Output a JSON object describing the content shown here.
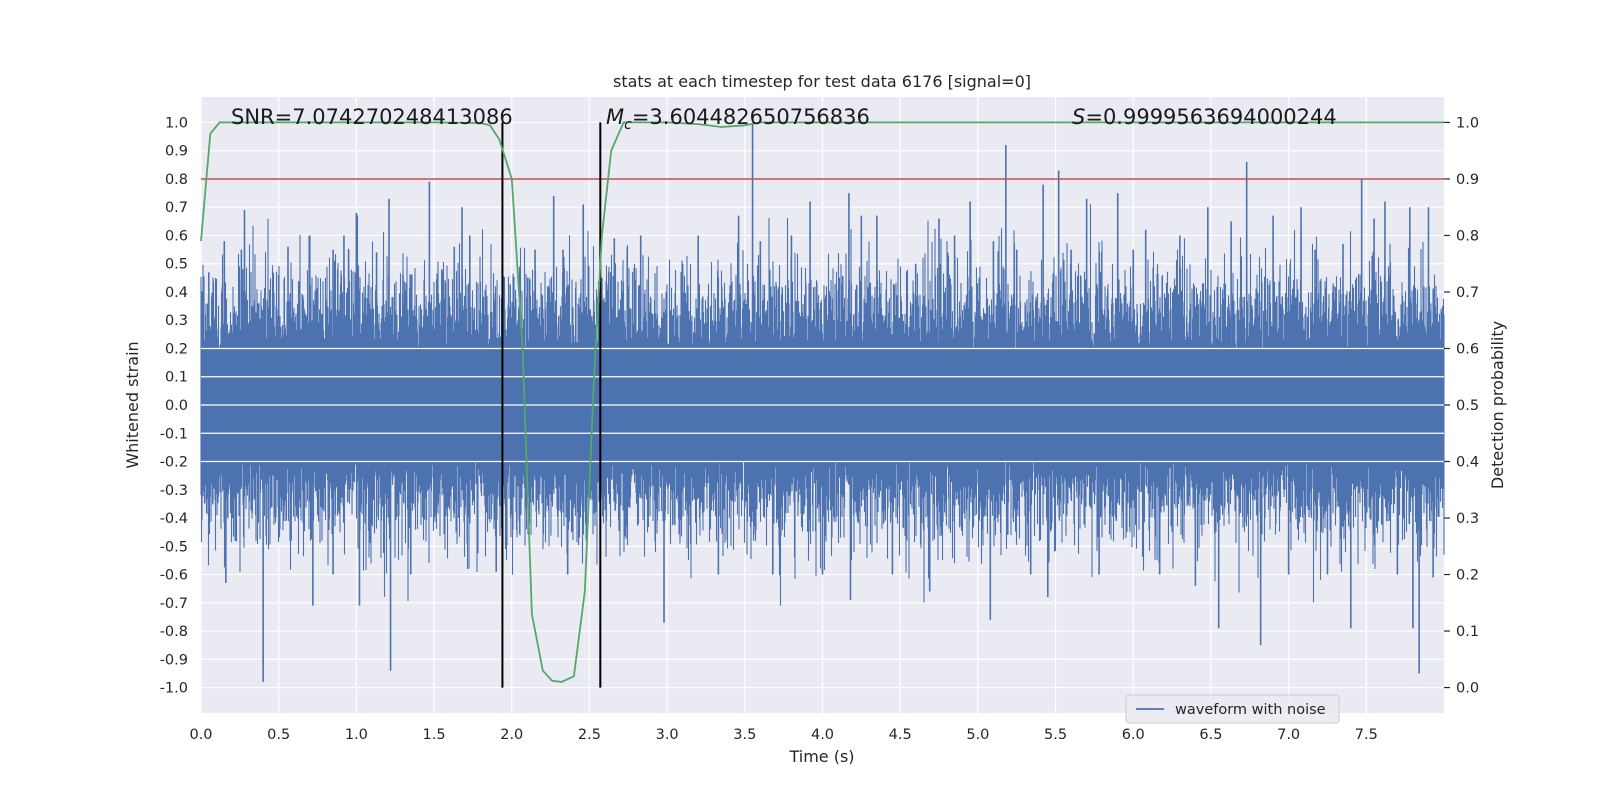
{
  "chart_data": {
    "type": "line",
    "title": "stats at each timestep for test data 6176 [signal=0]",
    "xlabel": "Time (s)",
    "ylabel": "Whitened strain",
    "ylabel_right": "Detection probability",
    "xlim": [
      0.0,
      8.0
    ],
    "ylim": [
      -1.09,
      1.09
    ],
    "ylim_right": [
      -0.045,
      1.045
    ],
    "x_ticks": [
      "0.0",
      "0.5",
      "1.0",
      "1.5",
      "2.0",
      "2.5",
      "3.0",
      "3.5",
      "4.0",
      "4.5",
      "5.0",
      "5.5",
      "6.0",
      "6.5",
      "7.0",
      "7.5"
    ],
    "y_ticks": [
      "1.0",
      "0.9",
      "0.8",
      "0.7",
      "0.6",
      "0.5",
      "0.4",
      "0.3",
      "0.2",
      "0.1",
      "0.0",
      "-0.1",
      "-0.2",
      "-0.3",
      "-0.4",
      "-0.5",
      "-0.6",
      "-0.7",
      "-0.8",
      "-0.9",
      "-1.0"
    ],
    "y_ticks_right": [
      "1.0",
      "0.9",
      "0.8",
      "0.7",
      "0.6",
      "0.5",
      "0.4",
      "0.3",
      "0.2",
      "0.1",
      "0.0"
    ],
    "grid": true,
    "legend": {
      "position": "bottom-right",
      "entries": [
        "waveform with noise"
      ]
    },
    "annotations": {
      "snr": "SNR=7.074270248413086",
      "mc_symbol": "M",
      "mc_sub": "c",
      "mc_value": "=3.604482650756836",
      "s_symbol": "S",
      "s_value": "=0.9999563694000244"
    },
    "threshold_right": 0.9,
    "vertical_lines": [
      1.94,
      2.57
    ],
    "waveform": {
      "name": "waveform with noise",
      "duration": 8.0,
      "core_amplitude": 0.2,
      "typical_amplitude": 0.45,
      "spikes": [
        {
          "x": 0.05,
          "y": 0.47
        },
        {
          "x": 0.15,
          "y": 0.58
        },
        {
          "x": 0.16,
          "y": -0.63
        },
        {
          "x": 0.26,
          "y": 0.55
        },
        {
          "x": 0.28,
          "y": 0.69
        },
        {
          "x": 0.4,
          "y": -0.98
        },
        {
          "x": 0.5,
          "y": 0.46
        },
        {
          "x": 0.56,
          "y": 0.56
        },
        {
          "x": 0.58,
          "y": -0.48
        },
        {
          "x": 0.7,
          "y": 0.6
        },
        {
          "x": 0.72,
          "y": -0.71
        },
        {
          "x": 0.85,
          "y": 0.55
        },
        {
          "x": 0.85,
          "y": -0.6
        },
        {
          "x": 0.92,
          "y": 0.6
        },
        {
          "x": 0.95,
          "y": 0.55
        },
        {
          "x": 1.0,
          "y": 0.68
        },
        {
          "x": 1.02,
          "y": -0.71
        },
        {
          "x": 1.13,
          "y": 0.54
        },
        {
          "x": 1.21,
          "y": 0.73
        },
        {
          "x": 1.22,
          "y": -0.94
        },
        {
          "x": 1.3,
          "y": 0.46
        },
        {
          "x": 1.35,
          "y": -0.6
        },
        {
          "x": 1.47,
          "y": 0.79
        },
        {
          "x": 1.55,
          "y": 0.48
        },
        {
          "x": 1.63,
          "y": 0.56
        },
        {
          "x": 1.68,
          "y": 0.7
        },
        {
          "x": 1.73,
          "y": 0.6
        },
        {
          "x": 1.9,
          "y": -0.59
        },
        {
          "x": 2.04,
          "y": 0.3
        },
        {
          "x": 2.15,
          "y": 0.55
        },
        {
          "x": 2.27,
          "y": 0.74
        },
        {
          "x": 2.33,
          "y": 0.55
        },
        {
          "x": 2.36,
          "y": -0.6
        },
        {
          "x": 2.46,
          "y": 0.71
        },
        {
          "x": 2.48,
          "y": -0.48
        },
        {
          "x": 2.58,
          "y": 0.45
        },
        {
          "x": 2.66,
          "y": 0.59
        },
        {
          "x": 2.75,
          "y": 0.42
        },
        {
          "x": 2.83,
          "y": 0.6
        },
        {
          "x": 2.98,
          "y": -0.77
        },
        {
          "x": 3.1,
          "y": 0.5
        },
        {
          "x": 3.2,
          "y": 0.6
        },
        {
          "x": 3.33,
          "y": -0.6
        },
        {
          "x": 3.46,
          "y": 0.67
        },
        {
          "x": 3.55,
          "y": 1.0
        },
        {
          "x": 3.6,
          "y": 0.58
        },
        {
          "x": 3.68,
          "y": -0.6
        },
        {
          "x": 3.8,
          "y": 0.6
        },
        {
          "x": 3.92,
          "y": 0.72
        },
        {
          "x": 4.0,
          "y": -0.6
        },
        {
          "x": 4.17,
          "y": 0.75
        },
        {
          "x": 4.18,
          "y": -0.69
        },
        {
          "x": 4.25,
          "y": 0.67
        },
        {
          "x": 4.35,
          "y": 0.67
        },
        {
          "x": 4.45,
          "y": -0.6
        },
        {
          "x": 4.6,
          "y": 0.5
        },
        {
          "x": 4.69,
          "y": -0.66
        },
        {
          "x": 4.75,
          "y": 0.66
        },
        {
          "x": 4.85,
          "y": 0.6
        },
        {
          "x": 4.95,
          "y": 0.72
        },
        {
          "x": 5.08,
          "y": -0.76
        },
        {
          "x": 5.1,
          "y": 0.58
        },
        {
          "x": 5.18,
          "y": 0.92
        },
        {
          "x": 5.25,
          "y": 0.55
        },
        {
          "x": 5.34,
          "y": -0.6
        },
        {
          "x": 5.42,
          "y": 0.78
        },
        {
          "x": 5.45,
          "y": -0.68
        },
        {
          "x": 5.52,
          "y": 0.83
        },
        {
          "x": 5.6,
          "y": 0.55
        },
        {
          "x": 5.7,
          "y": 0.73
        },
        {
          "x": 5.78,
          "y": -0.6
        },
        {
          "x": 5.9,
          "y": 0.75
        },
        {
          "x": 6.0,
          "y": 0.55
        },
        {
          "x": 6.08,
          "y": 0.62
        },
        {
          "x": 6.17,
          "y": -0.6
        },
        {
          "x": 6.3,
          "y": 0.6
        },
        {
          "x": 6.4,
          "y": -0.64
        },
        {
          "x": 6.48,
          "y": 0.7
        },
        {
          "x": 6.55,
          "y": -0.79
        },
        {
          "x": 6.63,
          "y": 0.65
        },
        {
          "x": 6.73,
          "y": 0.86
        },
        {
          "x": 6.82,
          "y": -0.85
        },
        {
          "x": 6.9,
          "y": 0.67
        },
        {
          "x": 7.0,
          "y": -0.6
        },
        {
          "x": 7.08,
          "y": 0.7
        },
        {
          "x": 7.17,
          "y": 0.55
        },
        {
          "x": 7.25,
          "y": -0.6
        },
        {
          "x": 7.35,
          "y": 0.57
        },
        {
          "x": 7.4,
          "y": -0.79
        },
        {
          "x": 7.47,
          "y": 0.8
        },
        {
          "x": 7.55,
          "y": 0.66
        },
        {
          "x": 7.62,
          "y": 0.72
        },
        {
          "x": 7.7,
          "y": -0.6
        },
        {
          "x": 7.78,
          "y": 0.7
        },
        {
          "x": 7.8,
          "y": -0.79
        },
        {
          "x": 7.84,
          "y": -0.95
        },
        {
          "x": 7.9,
          "y": 0.7
        },
        {
          "x": 7.93,
          "y": -0.61
        }
      ]
    },
    "detection_probability": {
      "name": "Detection probability",
      "x": [
        0.0,
        0.06,
        0.12,
        0.5,
        1.0,
        1.5,
        1.8,
        1.86,
        1.92,
        2.0,
        2.07,
        2.13,
        2.2,
        2.26,
        2.32,
        2.4,
        2.47,
        2.53,
        2.58,
        2.64,
        2.72,
        3.0,
        3.2,
        3.35,
        3.5,
        3.6,
        4.0,
        5.0,
        6.0,
        7.0,
        8.0
      ],
      "y": [
        0.79,
        0.98,
        1.0,
        1.0,
        1.0,
        1.0,
        0.999,
        0.995,
        0.97,
        0.9,
        0.6,
        0.13,
        0.03,
        0.012,
        0.01,
        0.02,
        0.17,
        0.55,
        0.8,
        0.95,
        1.0,
        1.0,
        0.997,
        0.992,
        0.995,
        1.0,
        1.0,
        1.0,
        1.0,
        1.0,
        1.0
      ]
    },
    "colors": {
      "waveform": "#4c72b0",
      "probability": "#55a868",
      "threshold": "#c44e52",
      "axes_bg": "#eaeaf2",
      "grid": "#ffffff",
      "vlines": "#000000"
    }
  }
}
